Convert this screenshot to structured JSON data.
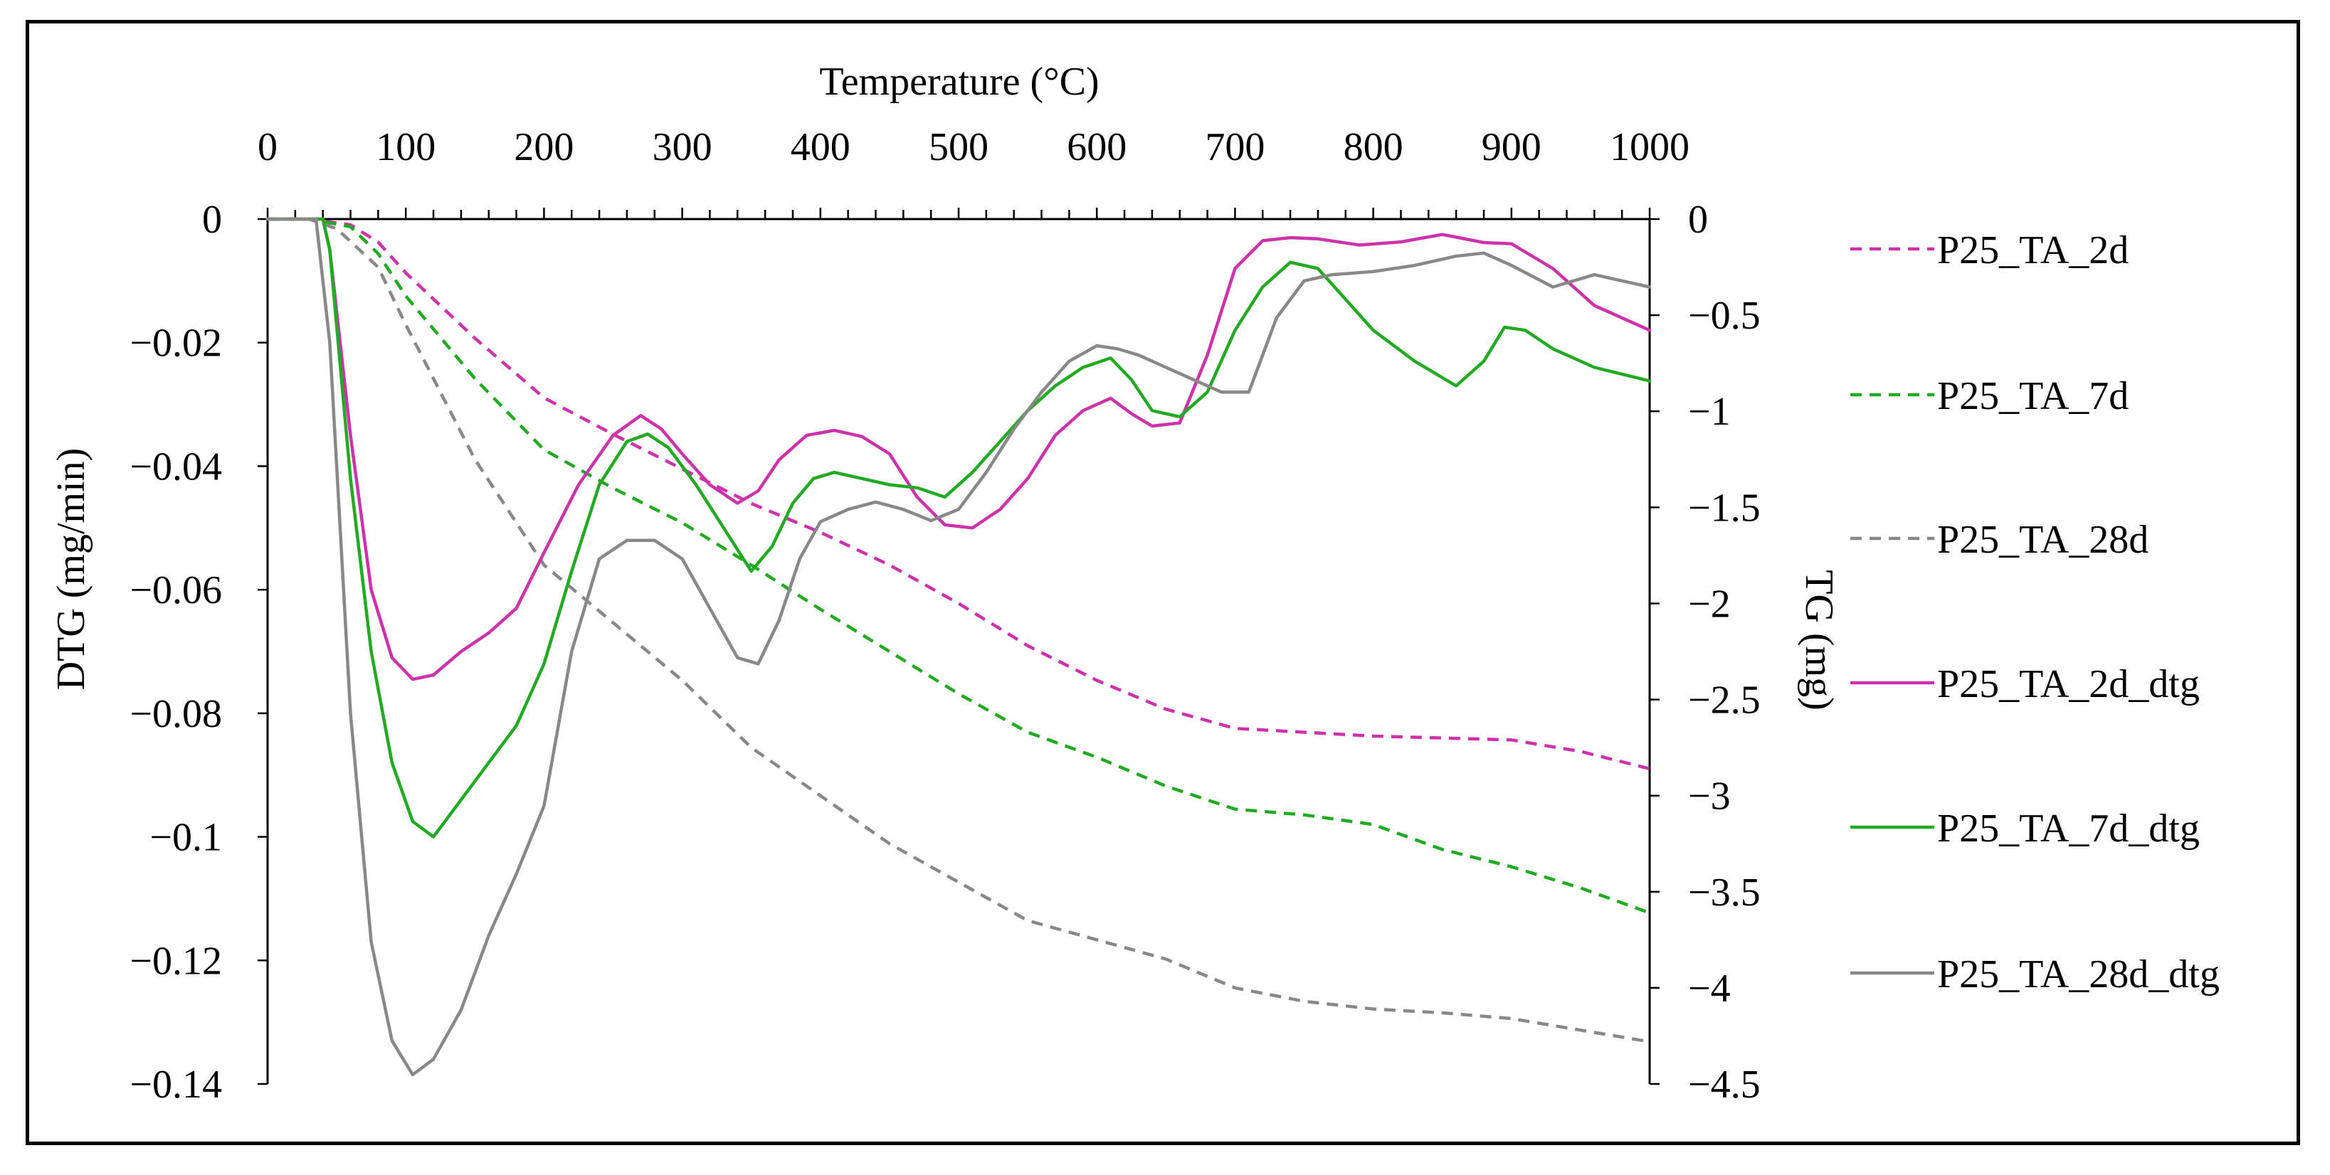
{
  "chart_data": {
    "type": "line",
    "title": "",
    "xlabel": "Temperature (°C)",
    "ylabel_left": "DTG (mg/min)",
    "ylabel_right": "TG (mg)",
    "xlim": [
      0,
      1000
    ],
    "ylim_left": [
      -0.14,
      0
    ],
    "ylim_right": [
      -4.5,
      0
    ],
    "x_ticks": [
      0,
      100,
      200,
      300,
      400,
      500,
      600,
      700,
      800,
      900,
      1000
    ],
    "x_tick_labels": [
      "0",
      "100",
      "200",
      "300",
      "400",
      "500",
      "600",
      "700",
      "800",
      "900",
      "1000"
    ],
    "y_left_ticks": [
      0,
      -0.02,
      -0.04,
      -0.06,
      -0.08,
      -0.1,
      -0.12,
      -0.14
    ],
    "y_left_tick_labels": [
      "0",
      "−0.02",
      "−0.04",
      "−0.06",
      "−0.08",
      "−0.1",
      "−0.12",
      "−0.14"
    ],
    "y_right_ticks": [
      0,
      -0.5,
      -1,
      -1.5,
      -2,
      -2.5,
      -3,
      -3.5,
      -4,
      -4.5
    ],
    "y_right_tick_labels": [
      "0",
      "−0.5",
      "−1",
      "−1.5",
      "−2",
      "−2.5",
      "−3",
      "−3.5",
      "−4",
      "−4.5"
    ],
    "legend_position": "right",
    "series": [
      {
        "name": "P25_TA_2d",
        "axis": "right",
        "style": "dashed",
        "color": "#cc33aa",
        "x": [
          0,
          30,
          60,
          80,
          100,
          150,
          200,
          250,
          300,
          350,
          400,
          450,
          500,
          550,
          600,
          650,
          700,
          750,
          800,
          850,
          900,
          950,
          1000
        ],
        "y": [
          0,
          0,
          -0.03,
          -0.12,
          -0.28,
          -0.62,
          -0.93,
          -1.12,
          -1.3,
          -1.48,
          -1.63,
          -1.8,
          -2.0,
          -2.22,
          -2.4,
          -2.55,
          -2.65,
          -2.67,
          -2.69,
          -2.7,
          -2.71,
          -2.77,
          -2.86
        ]
      },
      {
        "name": "P25_TA_7d",
        "axis": "right",
        "style": "dashed",
        "color": "#22aa22",
        "x": [
          0,
          30,
          60,
          80,
          100,
          150,
          200,
          250,
          300,
          350,
          400,
          450,
          500,
          550,
          600,
          650,
          700,
          750,
          800,
          850,
          900,
          950,
          1000
        ],
        "y": [
          0,
          0,
          -0.04,
          -0.18,
          -0.4,
          -0.83,
          -1.2,
          -1.4,
          -1.58,
          -1.8,
          -2.03,
          -2.25,
          -2.47,
          -2.67,
          -2.8,
          -2.95,
          -3.07,
          -3.1,
          -3.15,
          -3.28,
          -3.37,
          -3.48,
          -3.61
        ]
      },
      {
        "name": "P25_TA_28d",
        "axis": "right",
        "style": "dashed",
        "color": "#888888",
        "x": [
          0,
          30,
          50,
          80,
          100,
          150,
          200,
          250,
          300,
          350,
          400,
          450,
          500,
          550,
          600,
          650,
          700,
          750,
          800,
          850,
          900,
          950,
          1000
        ],
        "y": [
          0,
          0,
          -0.05,
          -0.25,
          -0.55,
          -1.25,
          -1.8,
          -2.1,
          -2.4,
          -2.75,
          -3.0,
          -3.25,
          -3.45,
          -3.65,
          -3.75,
          -3.85,
          -4.0,
          -4.07,
          -4.11,
          -4.13,
          -4.16,
          -4.22,
          -4.28
        ]
      },
      {
        "name": "P25_TA_2d_dtg",
        "axis": "left",
        "style": "solid",
        "color": "#cc33aa",
        "x": [
          0,
          40,
          45,
          60,
          75,
          90,
          105,
          120,
          140,
          160,
          180,
          200,
          225,
          250,
          270,
          285,
          300,
          320,
          340,
          355,
          370,
          390,
          410,
          430,
          450,
          470,
          490,
          510,
          530,
          550,
          570,
          590,
          610,
          625,
          640,
          660,
          680,
          700,
          720,
          740,
          760,
          790,
          820,
          850,
          880,
          900,
          930,
          960,
          1000
        ],
        "y": [
          0,
          0,
          -0.005,
          -0.035,
          -0.06,
          -0.071,
          -0.0745,
          -0.0738,
          -0.07,
          -0.067,
          -0.063,
          -0.054,
          -0.043,
          -0.035,
          -0.0318,
          -0.034,
          -0.038,
          -0.043,
          -0.046,
          -0.044,
          -0.039,
          -0.035,
          -0.0342,
          -0.0352,
          -0.038,
          -0.045,
          -0.0495,
          -0.05,
          -0.047,
          -0.042,
          -0.035,
          -0.031,
          -0.029,
          -0.0315,
          -0.0335,
          -0.033,
          -0.022,
          -0.008,
          -0.0035,
          -0.003,
          -0.0032,
          -0.0042,
          -0.0037,
          -0.0025,
          -0.0038,
          -0.004,
          -0.008,
          -0.014,
          -0.018
        ]
      },
      {
        "name": "P25_TA_7d_dtg",
        "axis": "left",
        "style": "solid",
        "color": "#22aa22",
        "x": [
          0,
          40,
          45,
          60,
          75,
          90,
          105,
          120,
          140,
          160,
          180,
          200,
          220,
          240,
          260,
          275,
          290,
          310,
          330,
          350,
          365,
          380,
          395,
          410,
          430,
          450,
          470,
          490,
          510,
          530,
          550,
          570,
          590,
          610,
          625,
          640,
          660,
          680,
          700,
          720,
          740,
          760,
          780,
          800,
          830,
          860,
          880,
          895,
          910,
          930,
          960,
          1000
        ],
        "y": [
          0,
          0,
          -0.005,
          -0.042,
          -0.07,
          -0.088,
          -0.0975,
          -0.1,
          -0.094,
          -0.088,
          -0.082,
          -0.072,
          -0.057,
          -0.043,
          -0.036,
          -0.0348,
          -0.037,
          -0.043,
          -0.05,
          -0.057,
          -0.053,
          -0.046,
          -0.042,
          -0.041,
          -0.042,
          -0.043,
          -0.0435,
          -0.045,
          -0.041,
          -0.036,
          -0.031,
          -0.027,
          -0.024,
          -0.0225,
          -0.026,
          -0.031,
          -0.032,
          -0.028,
          -0.018,
          -0.011,
          -0.007,
          -0.008,
          -0.013,
          -0.018,
          -0.023,
          -0.027,
          -0.023,
          -0.0175,
          -0.018,
          -0.021,
          -0.024,
          -0.0262
        ]
      },
      {
        "name": "P25_TA_28d_dtg",
        "axis": "left",
        "style": "solid",
        "color": "#888888",
        "x": [
          0,
          35,
          45,
          60,
          75,
          90,
          105,
          120,
          140,
          160,
          180,
          200,
          220,
          240,
          260,
          280,
          300,
          320,
          340,
          355,
          370,
          385,
          400,
          420,
          440,
          460,
          480,
          500,
          520,
          540,
          560,
          580,
          600,
          615,
          630,
          650,
          670,
          690,
          710,
          730,
          750,
          770,
          800,
          830,
          860,
          880,
          900,
          930,
          960,
          1000
        ],
        "y": [
          0,
          0,
          -0.02,
          -0.08,
          -0.117,
          -0.133,
          -0.1385,
          -0.136,
          -0.128,
          -0.116,
          -0.106,
          -0.095,
          -0.07,
          -0.055,
          -0.052,
          -0.052,
          -0.055,
          -0.063,
          -0.071,
          -0.072,
          -0.065,
          -0.055,
          -0.049,
          -0.047,
          -0.0458,
          -0.047,
          -0.0488,
          -0.047,
          -0.041,
          -0.034,
          -0.028,
          -0.023,
          -0.0205,
          -0.021,
          -0.022,
          -0.024,
          -0.026,
          -0.028,
          -0.028,
          -0.016,
          -0.01,
          -0.009,
          -0.0085,
          -0.0075,
          -0.006,
          -0.0055,
          -0.0075,
          -0.011,
          -0.009,
          -0.011
        ]
      }
    ]
  }
}
